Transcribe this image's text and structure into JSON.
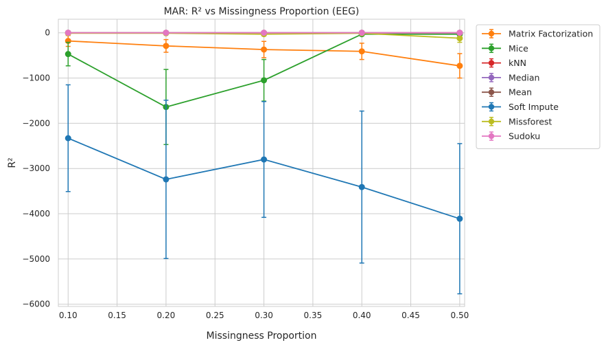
{
  "chart_data": {
    "type": "line",
    "title": "MAR: R² vs Missingness Proportion (EEG)",
    "xlabel": "Missingness Proportion",
    "ylabel": "R²",
    "xlim": [
      0.09,
      0.505
    ],
    "ylim": [
      -6050,
      300
    ],
    "xticks": [
      0.1,
      0.15,
      0.2,
      0.25,
      0.3,
      0.35,
      0.4,
      0.45,
      0.5
    ],
    "xtick_labels": [
      "0.10",
      "0.15",
      "0.20",
      "0.25",
      "0.30",
      "0.35",
      "0.40",
      "0.45",
      "0.50"
    ],
    "yticks": [
      0,
      -1000,
      -2000,
      -3000,
      -4000,
      -5000,
      -6000
    ],
    "ytick_labels": [
      "0",
      "−1000",
      "−2000",
      "−3000",
      "−4000",
      "−5000",
      "−6000"
    ],
    "grid": true,
    "legend_placement": "outside-top-right",
    "x": [
      0.1,
      0.2,
      0.3,
      0.4,
      0.5
    ],
    "series": [
      {
        "name": "Matrix Factorization",
        "color": "#ff7f0e",
        "values": [
          -180,
          -290,
          -370,
          -410,
          -730
        ],
        "errors": [
          120,
          140,
          180,
          180,
          270
        ]
      },
      {
        "name": "Mice",
        "color": "#2ca02c",
        "values": [
          -470,
          -1640,
          -1050,
          -30,
          -30
        ],
        "errors": [
          260,
          830,
          460,
          30,
          30
        ]
      },
      {
        "name": "kNN",
        "color": "#d62728",
        "values": [
          0,
          0,
          0,
          0,
          0
        ],
        "errors": [
          10,
          10,
          10,
          10,
          10
        ]
      },
      {
        "name": "Median",
        "color": "#9467bd",
        "values": [
          0,
          0,
          0,
          0,
          0
        ],
        "errors": [
          10,
          10,
          10,
          10,
          10
        ]
      },
      {
        "name": "Mean",
        "color": "#8c564b",
        "values": [
          0,
          0,
          0,
          0,
          0
        ],
        "errors": [
          10,
          10,
          10,
          10,
          10
        ]
      },
      {
        "name": "Soft Impute",
        "color": "#1f77b4",
        "values": [
          -2330,
          -3240,
          -2800,
          -3410,
          -4110
        ],
        "errors": [
          1180,
          1750,
          1280,
          1680,
          1660
        ]
      },
      {
        "name": "Missforest",
        "color": "#bcbd22",
        "values": [
          -10,
          -10,
          -30,
          -10,
          -120
        ],
        "errors": [
          20,
          30,
          40,
          20,
          90
        ]
      },
      {
        "name": "Sudoku",
        "color": "#e377c2",
        "values": [
          0,
          0,
          0,
          0,
          0
        ],
        "errors": [
          5,
          5,
          5,
          5,
          5
        ]
      }
    ]
  }
}
